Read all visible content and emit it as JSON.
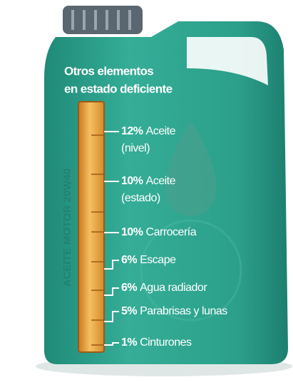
{
  "title_lines": [
    "Otros elementos",
    "en estado deficiente"
  ],
  "side_label": "ACEITE MOTOR 20W40",
  "items": [
    {
      "percent": "12%",
      "lines": [
        "Aceite",
        "(nivel)"
      ]
    },
    {
      "percent": "10%",
      "lines": [
        "Aceite",
        "(estado)"
      ]
    },
    {
      "percent": "10%",
      "lines": [
        "Carrocería"
      ]
    },
    {
      "percent": "6%",
      "lines": [
        "Escape"
      ]
    },
    {
      "percent": "6%",
      "lines": [
        "Agua radiador"
      ]
    },
    {
      "percent": "5%",
      "lines": [
        "Parabrisas y lunas"
      ]
    },
    {
      "percent": "1%",
      "lines": [
        "Cinturones"
      ]
    }
  ]
}
